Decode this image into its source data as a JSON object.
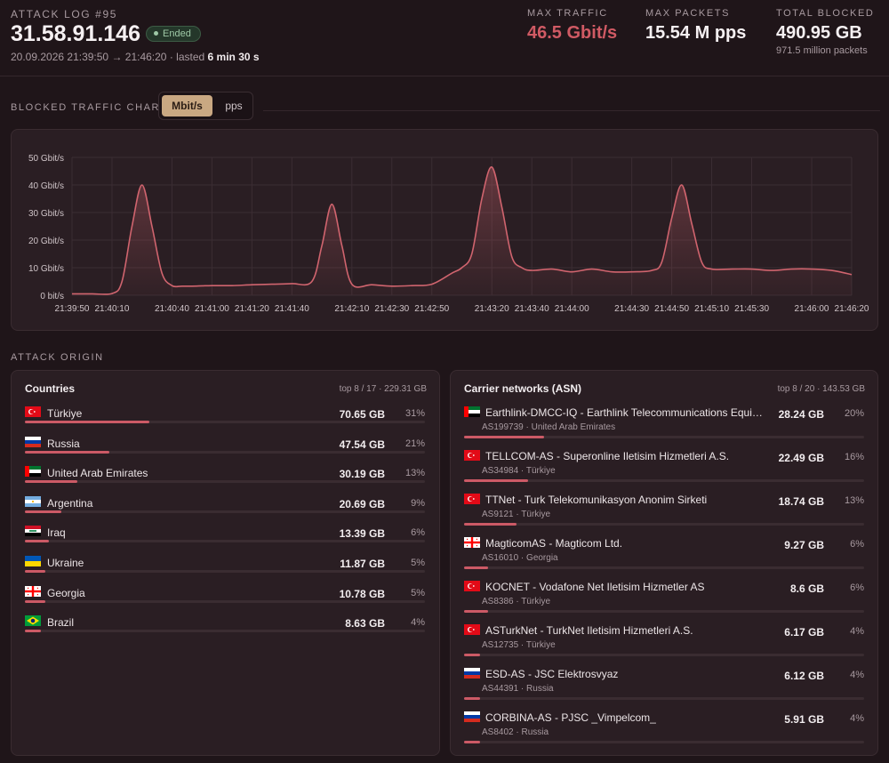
{
  "header": {
    "log_label": "ATTACK LOG #95",
    "ip": "31.58.91.146",
    "status": "Ended",
    "time_range": "20.09.2026 21:39:50 → 21:46:20 · lasted",
    "duration": "6 min 30 s",
    "stats": [
      {
        "label": "MAX TRAFFIC",
        "value": "46.5 Gbit/s",
        "sub": ""
      },
      {
        "label": "MAX PACKETS",
        "value": "15.54 M pps",
        "sub": ""
      },
      {
        "label": "TOTAL BLOCKED",
        "value": "490.95 GB",
        "sub": "971.5 million packets"
      }
    ]
  },
  "traffic": {
    "section_label": "BLOCKED TRAFFIC CHART",
    "unit_options": [
      "Mbit/s",
      "pps"
    ],
    "selected_unit": "Mbit/s"
  },
  "chart_data": {
    "type": "area",
    "title": "",
    "xlabel": "",
    "ylabel": "",
    "y_unit": "Gbit/s",
    "ylim": [
      0,
      50
    ],
    "yticks": [
      "0 bit/s",
      "10 Gbit/s",
      "20 Gbit/s",
      "30 Gbit/s",
      "40 Gbit/s",
      "50 Gbit/s"
    ],
    "xticks": [
      "21:39:50",
      "21:40:10",
      "21:40:40",
      "21:41:00",
      "21:41:20",
      "21:41:40",
      "21:42:10",
      "21:42:30",
      "21:42:50",
      "21:43:20",
      "21:43:40",
      "21:44:00",
      "21:44:30",
      "21:44:50",
      "21:45:10",
      "21:45:30",
      "21:46:00",
      "21:46:20"
    ],
    "grid": true,
    "color": "#d0646e",
    "series": [
      {
        "x": [
          "21:39:50",
          "21:40:00",
          "21:40:10",
          "21:40:15",
          "21:40:20",
          "21:40:25",
          "21:40:30",
          "21:40:35",
          "21:40:40",
          "21:40:45",
          "21:40:50",
          "21:40:55",
          "21:41:00",
          "21:41:10",
          "21:41:20",
          "21:41:30",
          "21:41:40",
          "21:41:50",
          "21:41:55",
          "21:42:00",
          "21:42:05",
          "21:42:10",
          "21:42:20",
          "21:42:30",
          "21:42:40",
          "21:42:50",
          "21:43:00",
          "21:43:05",
          "21:43:10",
          "21:43:15",
          "21:43:20",
          "21:43:25",
          "21:43:30",
          "21:43:35",
          "21:43:40",
          "21:43:50",
          "21:44:00",
          "21:44:10",
          "21:44:20",
          "21:44:30",
          "21:44:40",
          "21:44:45",
          "21:44:50",
          "21:44:55",
          "21:45:00",
          "21:45:05",
          "21:45:10",
          "21:45:20",
          "21:45:30",
          "21:45:40",
          "21:45:50",
          "21:46:00",
          "21:46:10",
          "21:46:20"
        ],
        "values": [
          0.5,
          0.5,
          0.6,
          5,
          25,
          40,
          25,
          8,
          3.5,
          3.3,
          3.3,
          3.4,
          3.5,
          3.5,
          3.8,
          4,
          4.2,
          5,
          18,
          33,
          18,
          4,
          3.8,
          3.3,
          3.5,
          4,
          8,
          10,
          15,
          35,
          46.5,
          32,
          14,
          10,
          9,
          9.5,
          8.5,
          9.5,
          8.5,
          8.5,
          9,
          12,
          28,
          40,
          26,
          12,
          9.5,
          9.5,
          9.5,
          9,
          9.5,
          9.5,
          9,
          7.5
        ]
      }
    ]
  },
  "origin": {
    "section_label": "ATTACK ORIGIN",
    "countries": {
      "title": "Countries",
      "summary": "top 8 / 17 · 229.31 GB",
      "rows": [
        {
          "name": "Türkiye",
          "flag": "tr-flag-icon",
          "gb": "70.65 GB",
          "pct": "31%",
          "share": 0.31
        },
        {
          "name": "Russia",
          "flag": "ru-flag-icon",
          "gb": "47.54 GB",
          "pct": "21%",
          "share": 0.21
        },
        {
          "name": "United Arab Emirates",
          "flag": "ae-flag-icon",
          "gb": "30.19 GB",
          "pct": "13%",
          "share": 0.13
        },
        {
          "name": "Argentina",
          "flag": "ar-flag-icon",
          "gb": "20.69 GB",
          "pct": "9%",
          "share": 0.09
        },
        {
          "name": "Iraq",
          "flag": "iq-flag-icon",
          "gb": "13.39 GB",
          "pct": "6%",
          "share": 0.06
        },
        {
          "name": "Ukraine",
          "flag": "ua-flag-icon",
          "gb": "11.87 GB",
          "pct": "5%",
          "share": 0.05
        },
        {
          "name": "Georgia",
          "flag": "ge-flag-icon",
          "gb": "10.78 GB",
          "pct": "5%",
          "share": 0.05
        },
        {
          "name": "Brazil",
          "flag": "br-flag-icon",
          "gb": "8.63 GB",
          "pct": "4%",
          "share": 0.04
        }
      ]
    },
    "asn": {
      "title": "Carrier networks (ASN)",
      "summary": "top 8 / 20 · 143.53 GB",
      "rows": [
        {
          "name": "Earthlink-DMCC-IQ - Earthlink Telecommunications Equipment Trading & Services DMCC",
          "sub": "AS199739 · United Arab Emirates",
          "flag": "ae-flag-icon",
          "gb": "28.24 GB",
          "pct": "20%",
          "share": 0.2
        },
        {
          "name": "TELLCOM-AS - Superonline Iletisim Hizmetleri A.S.",
          "sub": "AS34984 · Türkiye",
          "flag": "tr-flag-icon",
          "gb": "22.49 GB",
          "pct": "16%",
          "share": 0.16
        },
        {
          "name": "TTNet - Turk Telekomunikasyon Anonim Sirketi",
          "sub": "AS9121 · Türkiye",
          "flag": "tr-flag-icon",
          "gb": "18.74 GB",
          "pct": "13%",
          "share": 0.13
        },
        {
          "name": "MagticomAS - Magticom Ltd.",
          "sub": "AS16010 · Georgia",
          "flag": "ge-flag-icon",
          "gb": "9.27 GB",
          "pct": "6%",
          "share": 0.06
        },
        {
          "name": "KOCNET - Vodafone Net Iletisim Hizmetler AS",
          "sub": "AS8386 · Türkiye",
          "flag": "tr-flag-icon",
          "gb": "8.6 GB",
          "pct": "6%",
          "share": 0.06
        },
        {
          "name": "ASTurkNet - TurkNet Iletisim Hizmetleri A.S.",
          "sub": "AS12735 · Türkiye",
          "flag": "tr-flag-icon",
          "gb": "6.17 GB",
          "pct": "4%",
          "share": 0.04
        },
        {
          "name": "ESD-AS - JSC Elektrosvyaz",
          "sub": "AS44391 · Russia",
          "flag": "ru-flag-icon",
          "gb": "6.12 GB",
          "pct": "4%",
          "share": 0.04
        },
        {
          "name": "CORBINA-AS - PJSC _Vimpelcom_",
          "sub": "AS8402 · Russia",
          "flag": "ru-flag-icon",
          "gb": "5.91 GB",
          "pct": "4%",
          "share": 0.04
        }
      ]
    }
  }
}
